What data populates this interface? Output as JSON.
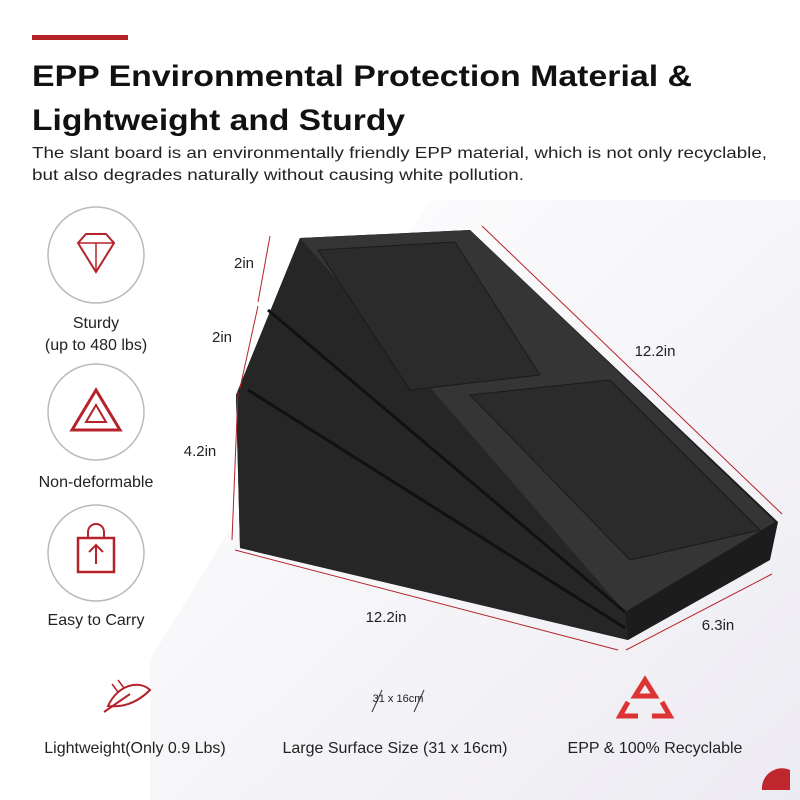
{
  "header": {
    "title_lines": [
      "EPP Environmental Protection Material  &",
      "Lightweight and Sturdy"
    ],
    "description_lines": [
      "The slant board is an environmentally friendly EPP material, which is not only recyclable,",
      "but also degrades naturally without causing white pollution."
    ]
  },
  "features": [
    {
      "label_lines": [
        "Sturdy",
        "(up to 480 lbs)"
      ]
    },
    {
      "label_lines": [
        "Non-deformable"
      ]
    },
    {
      "label_lines": [
        "Easy to Carry"
      ]
    }
  ],
  "dimensions": {
    "top_layer": "2in",
    "middle_layer": "2in",
    "bottom_layer": "4.2in",
    "slope_length": "12.2in",
    "base_length": "12.2in",
    "width": "6.3in"
  },
  "bottom_features": [
    {
      "label": "Lightweight(Only 0.9 Lbs)"
    },
    {
      "icon_text": "31 x 16cm",
      "label": "Large Surface Size (31 x 16cm)"
    },
    {
      "label": "EPP & 100% Recyclable"
    }
  ]
}
